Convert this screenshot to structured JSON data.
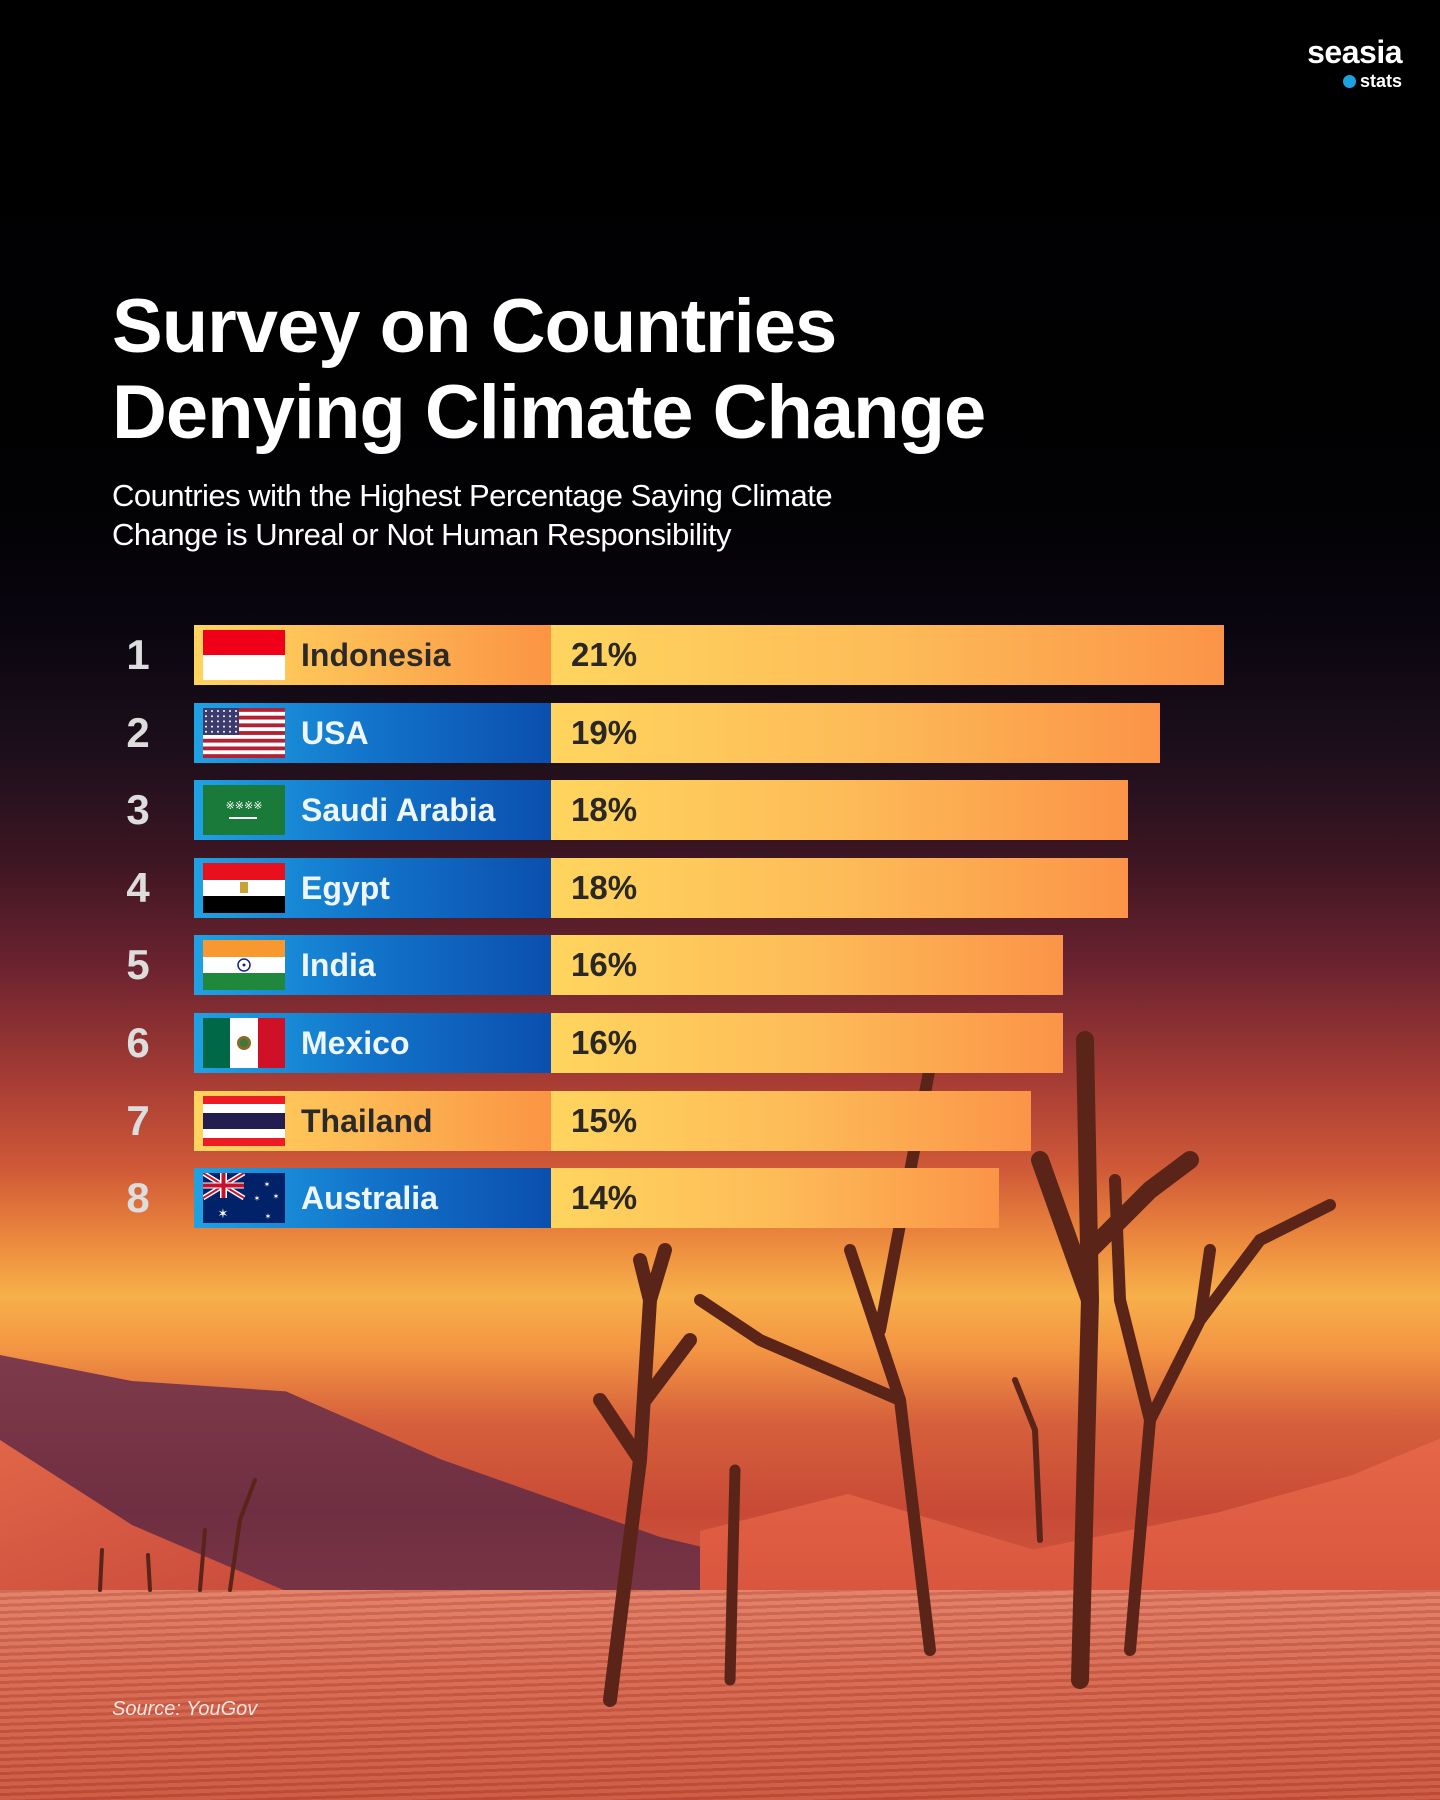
{
  "brand": {
    "name": "seasia",
    "sub": "stats",
    "accent_color": "#1aa3e0"
  },
  "title_line1": "Survey on Countries",
  "title_line2": "Denying Climate Change",
  "subtitle_line1": "Countries with the Highest Percentage Saying Climate",
  "subtitle_line2": "Change is Unreal or Not Human Responsibility",
  "source": "Source: YouGov",
  "colors": {
    "orange_bar": "#fdbb55",
    "blue_bar": "#1273c9",
    "value_bar": "#fdbc58"
  },
  "chart_data": {
    "type": "bar",
    "orientation": "horizontal",
    "title": "Survey on Countries Denying Climate Change",
    "subtitle": "Countries with the Highest Percentage Saying Climate Change is Unreal or Not Human Responsibility",
    "xlabel": "",
    "ylabel": "",
    "unit": "%",
    "grid": false,
    "legend": "none",
    "xlim": [
      0,
      21
    ],
    "categories": [
      "Indonesia",
      "USA",
      "Saudi Arabia",
      "Egypt",
      "India",
      "Mexico",
      "Thailand",
      "Australia"
    ],
    "values": [
      21,
      19,
      18,
      18,
      16,
      16,
      15,
      14
    ],
    "rows": [
      {
        "rank": "1",
        "country": "Indonesia",
        "value": 21,
        "label": "21%",
        "style": "orange",
        "flag": "indonesia-flag-icon"
      },
      {
        "rank": "2",
        "country": "USA",
        "value": 19,
        "label": "19%",
        "style": "blue",
        "flag": "usa-flag-icon"
      },
      {
        "rank": "3",
        "country": "Saudi Arabia",
        "value": 18,
        "label": "18%",
        "style": "blue",
        "flag": "saudi-arabia-flag-icon"
      },
      {
        "rank": "4",
        "country": "Egypt",
        "value": 18,
        "label": "18%",
        "style": "blue",
        "flag": "egypt-flag-icon"
      },
      {
        "rank": "5",
        "country": "India",
        "value": 16,
        "label": "16%",
        "style": "blue",
        "flag": "india-flag-icon"
      },
      {
        "rank": "6",
        "country": "Mexico",
        "value": 16,
        "label": "16%",
        "style": "blue",
        "flag": "mexico-flag-icon"
      },
      {
        "rank": "7",
        "country": "Thailand",
        "value": 15,
        "label": "15%",
        "style": "orange",
        "flag": "thailand-flag-icon"
      },
      {
        "rank": "8",
        "country": "Australia",
        "value": 14,
        "label": "14%",
        "style": "blue",
        "flag": "australia-flag-icon"
      }
    ]
  }
}
